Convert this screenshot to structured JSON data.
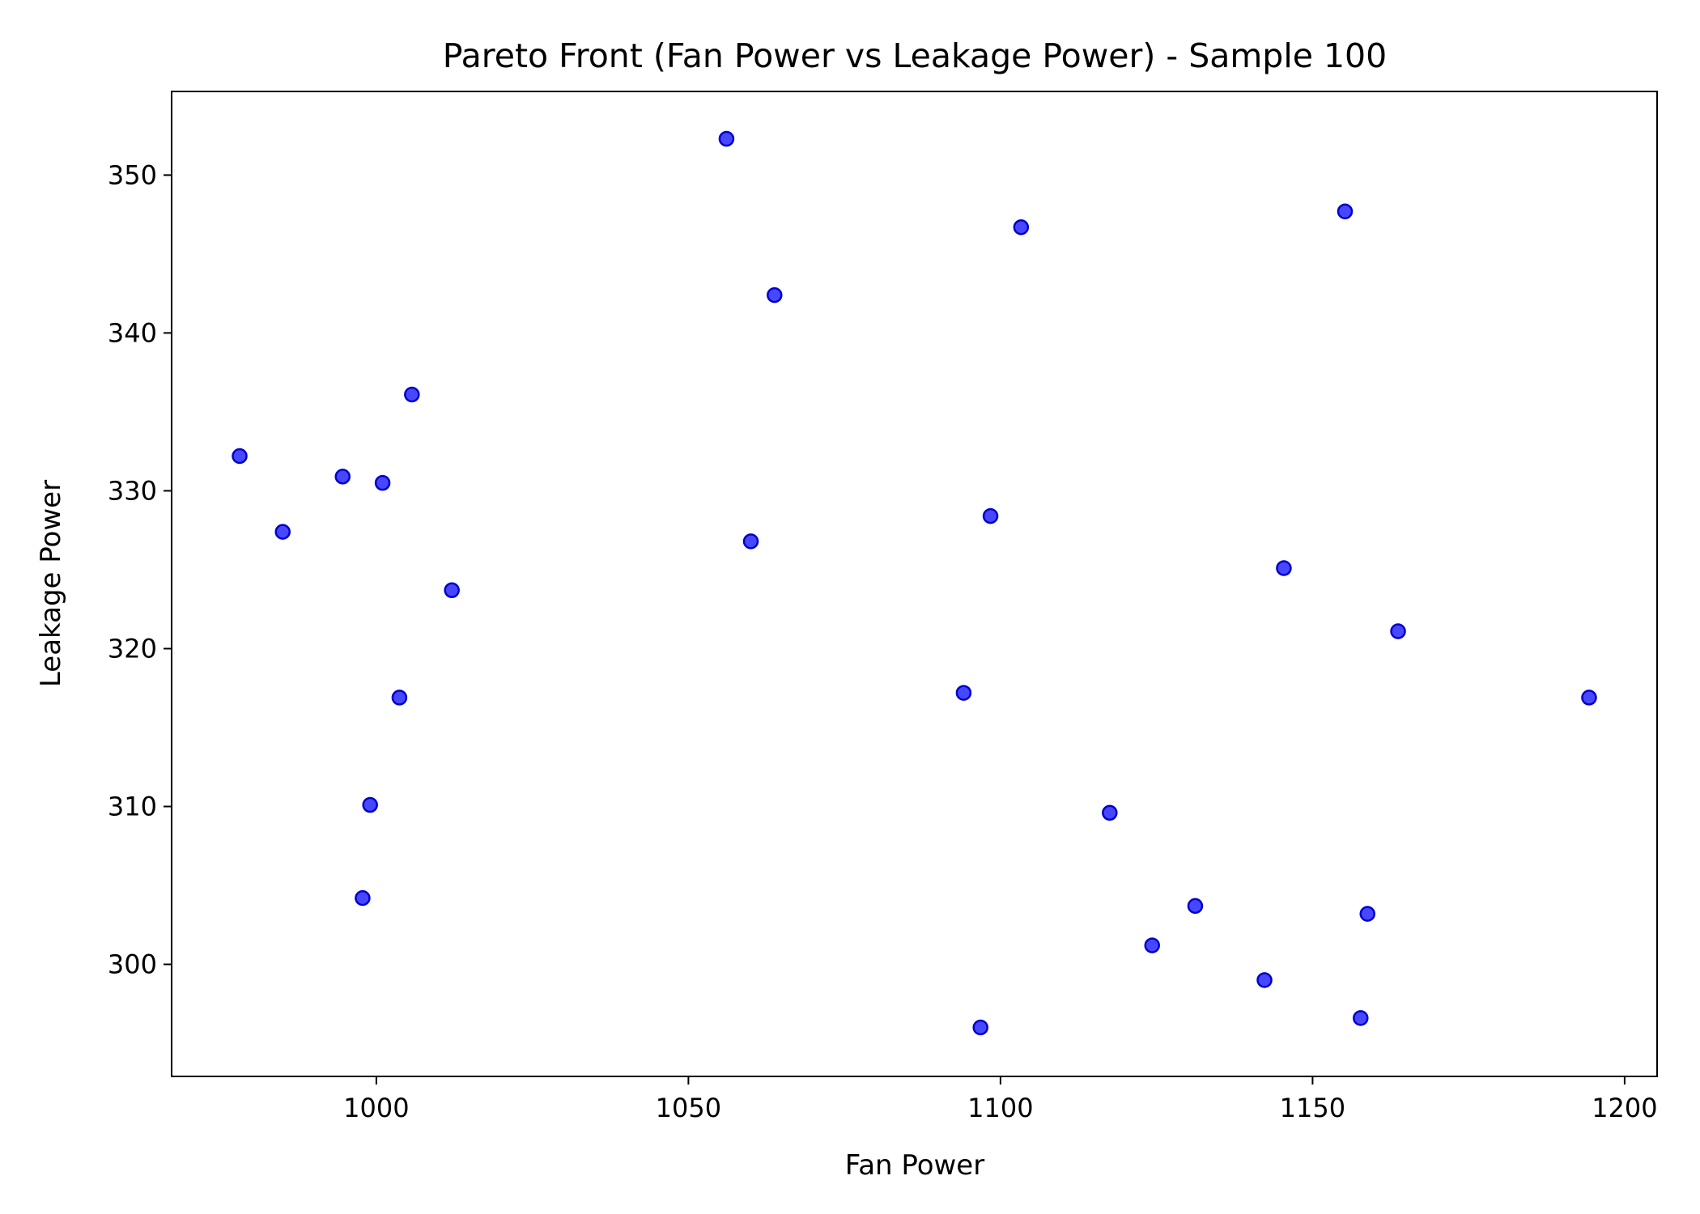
{
  "chart_data": {
    "type": "scatter",
    "title": "Pareto Front (Fan Power vs Leakage Power) - Sample 100",
    "xlabel": "Fan Power",
    "ylabel": "Leakage Power",
    "xlim": [
      967.2,
      1205.2
    ],
    "ylim": [
      292.9,
      355.3
    ],
    "xticks": [
      1000,
      1050,
      1100,
      1150,
      1200
    ],
    "yticks": [
      300,
      310,
      320,
      330,
      340,
      350
    ],
    "grid": false,
    "legend": "none",
    "marker_color": "#0000ff",
    "marker_edge_color": "#0000cc",
    "points": [
      {
        "x": 978.1,
        "y": 332.2
      },
      {
        "x": 985.0,
        "y": 327.4
      },
      {
        "x": 994.6,
        "y": 330.9
      },
      {
        "x": 997.8,
        "y": 304.2
      },
      {
        "x": 999.0,
        "y": 310.1
      },
      {
        "x": 1001.0,
        "y": 330.5
      },
      {
        "x": 1003.7,
        "y": 316.9
      },
      {
        "x": 1005.7,
        "y": 336.1
      },
      {
        "x": 1012.1,
        "y": 323.7
      },
      {
        "x": 1056.1,
        "y": 352.3
      },
      {
        "x": 1060.0,
        "y": 326.8
      },
      {
        "x": 1063.8,
        "y": 342.4
      },
      {
        "x": 1094.1,
        "y": 317.2
      },
      {
        "x": 1096.8,
        "y": 296.0
      },
      {
        "x": 1098.4,
        "y": 328.4
      },
      {
        "x": 1103.3,
        "y": 346.7
      },
      {
        "x": 1117.5,
        "y": 309.6
      },
      {
        "x": 1124.3,
        "y": 301.2
      },
      {
        "x": 1131.2,
        "y": 303.7
      },
      {
        "x": 1142.3,
        "y": 299.0
      },
      {
        "x": 1145.4,
        "y": 325.1
      },
      {
        "x": 1155.2,
        "y": 347.7
      },
      {
        "x": 1157.7,
        "y": 296.6
      },
      {
        "x": 1158.8,
        "y": 303.2
      },
      {
        "x": 1163.7,
        "y": 321.1
      },
      {
        "x": 1194.3,
        "y": 316.9
      }
    ]
  }
}
